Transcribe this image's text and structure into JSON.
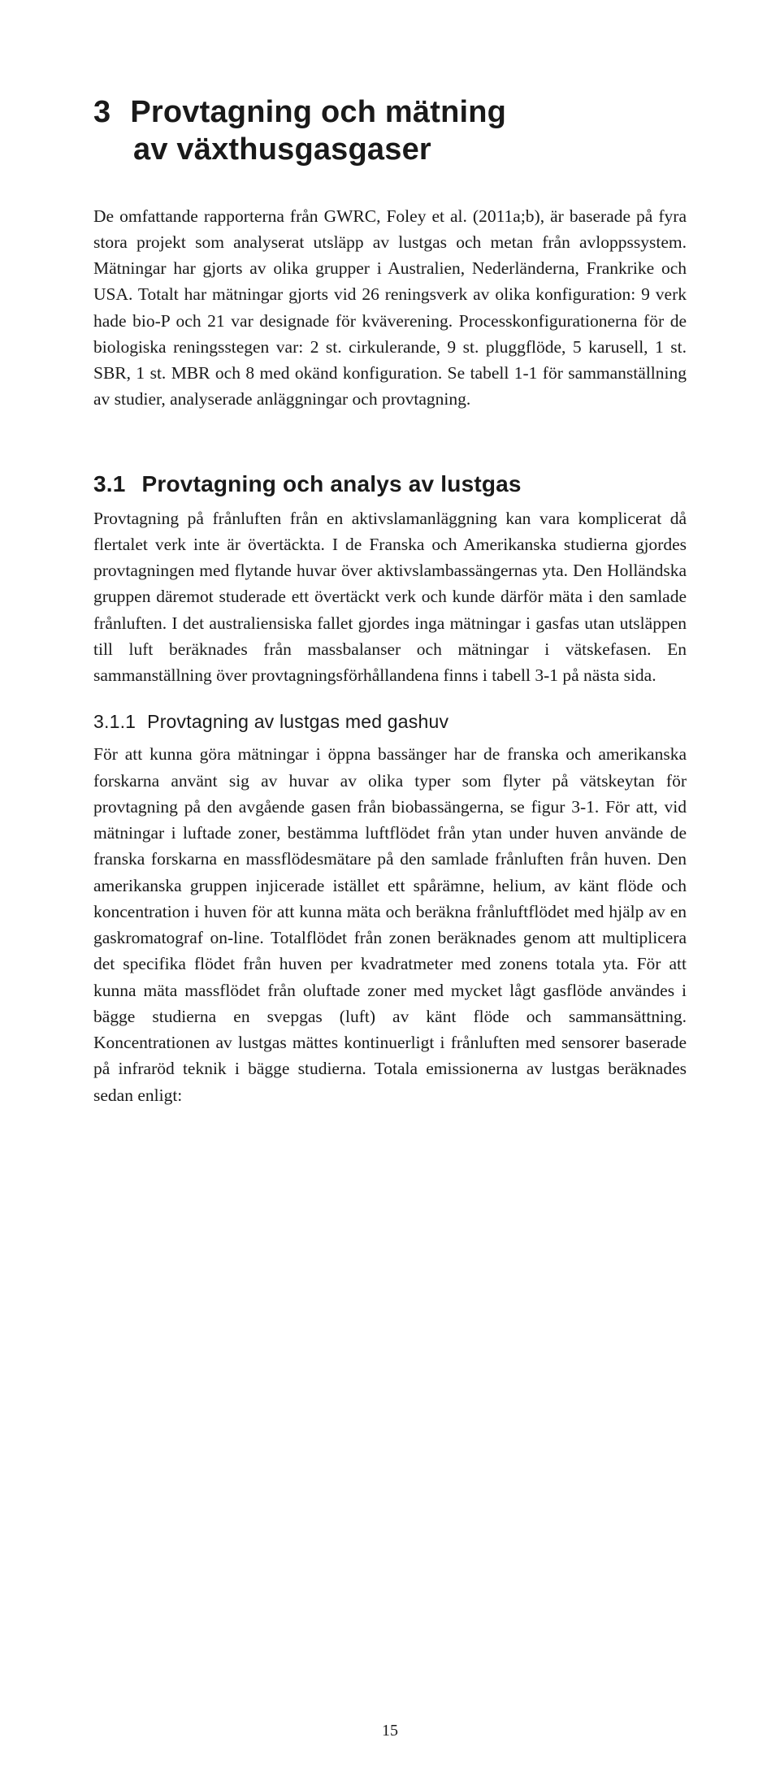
{
  "chapter": {
    "number": "3",
    "title_line1": "Provtagning och mätning",
    "title_line2": "av växthusgasgaser"
  },
  "intro_para": "De omfattande rapporterna från GWRC, Foley et al. (2011a;b), är baserade på fyra stora projekt som analyserat utsläpp av lustgas och metan från avloppssystem. Mätningar har gjorts av olika grupper i Australien, Nederländerna, Frankrike och USA. Totalt har mätningar gjorts vid 26 reningsverk av olika konfiguration: 9 verk hade bio-P och 21 var designade för kväverening. Processkonfigurationerna för de biologiska reningsstegen var: 2 st. cirkulerande, 9 st. pluggflöde, 5 karusell, 1 st. SBR, 1 st. MBR och 8 med okänd konfiguration. Se tabell 1-1 för sammanställning av studier, analyserade anläggningar och provtagning.",
  "section31": {
    "number": "3.1",
    "title": "Provtagning och analys av lustgas",
    "para": "Provtagning på frånluften från en aktivslamanläggning kan vara komplicerat då flertalet verk inte är övertäckta. I de Franska och Amerikanska studierna gjordes provtagningen med flytande huvar över aktivslambassängernas yta. Den Holländska gruppen däremot studerade ett övertäckt verk och kunde därför mäta i den samlade frånluften. I det australiensiska fallet gjordes inga mätningar i gasfas utan utsläppen till luft beräknades från massbalanser och mätningar i vätskefasen. En sammanställning över provtagningsförhållandena finns i tabell 3-1 på nästa sida."
  },
  "section311": {
    "number": "3.1.1",
    "title": "Provtagning av lustgas med gashuv",
    "para": "För att kunna göra mätningar i öppna bassänger har de franska och amerikanska forskarna använt sig av huvar av olika typer som flyter på vätskeytan för provtagning på den avgående gasen från biobassängerna, se figur 3-1. För att, vid mätningar i luftade zoner, bestämma luftflödet från ytan under huven använde de franska forskarna en massflödesmätare på den samlade frånluften från huven. Den amerikanska gruppen injicerade istället ett spårämne, helium, av känt flöde och koncentration i huven för att kunna mäta och beräkna frånluftflödet med hjälp av en gaskromatograf on-line. Totalflödet från zonen beräknades genom att multiplicera det specifika flödet från huven per kvadratmeter med zonens totala yta. För att kunna mäta massflödet från oluftade zoner med mycket lågt gasflöde användes i bägge studierna en svepgas (luft) av känt flöde och sammansättning. Koncentrationen av lustgas mättes kontinuerligt i frånluften med sensorer baserade på infraröd teknik i bägge studierna. Totala emissionerna av lustgas beräknades sedan enligt:"
  },
  "page_number": "15"
}
